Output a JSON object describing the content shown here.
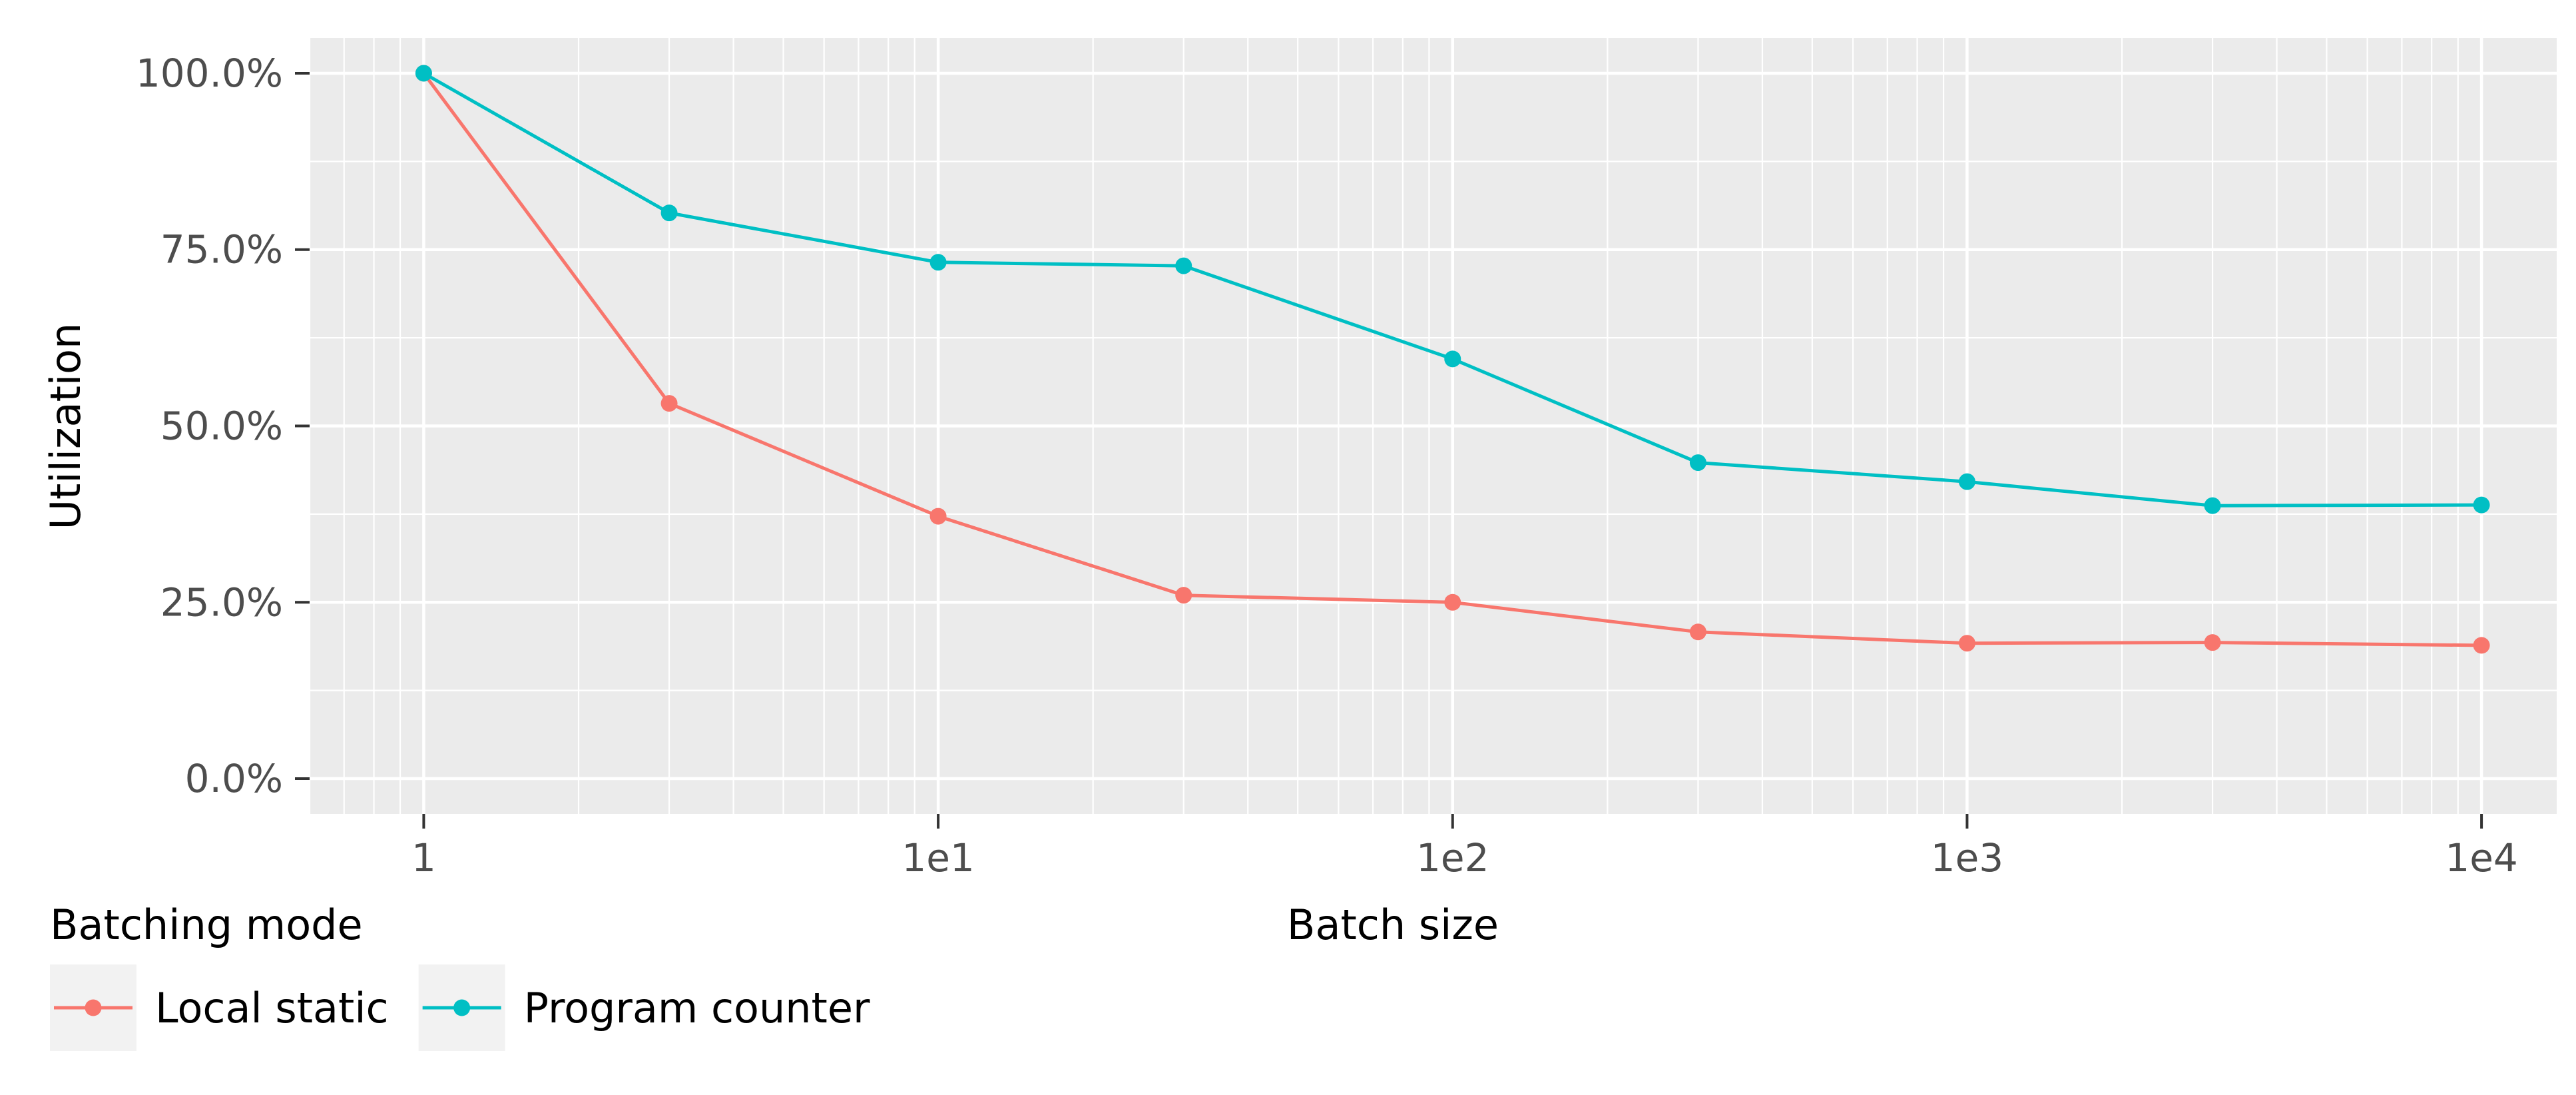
{
  "chart_data": {
    "type": "line",
    "xlabel": "Batch size",
    "ylabel": "Utilization",
    "x_scale": "log10",
    "xlim": [
      0.6,
      14000
    ],
    "ylim": [
      -5,
      105
    ],
    "x_ticks": [
      {
        "value": 1,
        "label": "1"
      },
      {
        "value": 10,
        "label": "1e1"
      },
      {
        "value": 100,
        "label": "1e2"
      },
      {
        "value": 1000,
        "label": "1e3"
      },
      {
        "value": 10000,
        "label": "1e4"
      }
    ],
    "y_ticks": [
      {
        "value": 0,
        "label": "0.0%"
      },
      {
        "value": 25,
        "label": "25.0%"
      },
      {
        "value": 50,
        "label": "50.0%"
      },
      {
        "value": 75,
        "label": "75.0%"
      },
      {
        "value": 100,
        "label": "100.0%"
      }
    ],
    "grid": true,
    "legend": {
      "title": "Batching mode",
      "position": "bottom-left"
    },
    "x": [
      1,
      3,
      10,
      30,
      100,
      300,
      1000,
      3000,
      10000
    ],
    "series": [
      {
        "name": "Local static",
        "color": "#F8766D",
        "values": [
          100,
          53.2,
          37.2,
          26.0,
          25.0,
          20.8,
          19.2,
          19.3,
          18.9
        ]
      },
      {
        "name": "Program counter",
        "color": "#00BFC4",
        "values": [
          100,
          80.2,
          73.2,
          72.7,
          59.5,
          44.8,
          42.1,
          38.7,
          38.8
        ]
      }
    ]
  }
}
